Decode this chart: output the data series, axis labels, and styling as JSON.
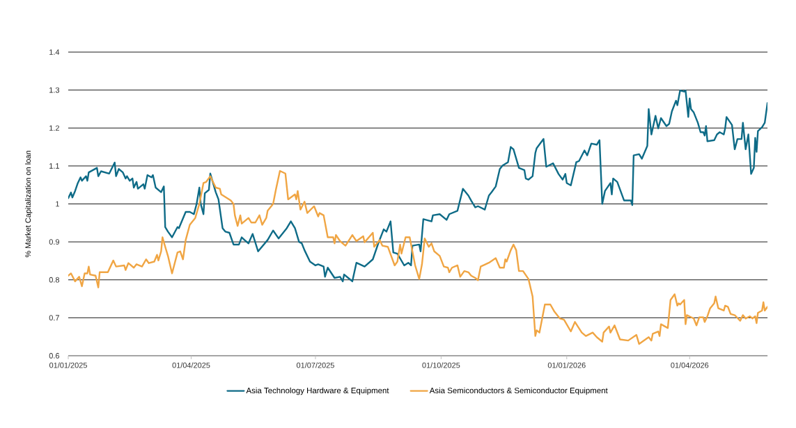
{
  "chart_data": {
    "type": "line",
    "ylabel": "% Market Capitalization on loan",
    "xlim": [
      "2025-01-01",
      "2026-05-28"
    ],
    "xticks": [
      {
        "value": "2025-01-01",
        "label": "01/01/2025"
      },
      {
        "value": "2025-04-01",
        "label": "01/04/2025"
      },
      {
        "value": "2025-07-01",
        "label": "01/07/2025"
      },
      {
        "value": "2025-10-01",
        "label": "01/10/2025"
      },
      {
        "value": "2026-01-01",
        "label": "01/01/2026"
      },
      {
        "value": "2026-04-01",
        "label": "01/04/2026"
      }
    ],
    "ylim": [
      0.6,
      1.4
    ],
    "yticks": [
      0.6,
      0.7,
      0.8,
      0.9,
      1,
      1.1,
      1.2,
      1.3,
      1.4
    ],
    "grid": "y",
    "legend": "bottom",
    "series": [
      {
        "name": "Asia Technology Hardware & Equipment",
        "color": "#0e6b87",
        "x": [
          "2025-01-01",
          "2025-01-03",
          "2025-01-04",
          "2025-01-06",
          "2025-01-08",
          "2025-01-10",
          "2025-01-11",
          "2025-01-14",
          "2025-01-15",
          "2025-01-16",
          "2025-01-22",
          "2025-01-23",
          "2025-01-25",
          "2025-01-31",
          "2025-02-04",
          "2025-02-05",
          "2025-02-07",
          "2025-02-10",
          "2025-02-12",
          "2025-02-13",
          "2025-02-15",
          "2025-02-17",
          "2025-02-18",
          "2025-02-20",
          "2025-02-21",
          "2025-02-25",
          "2025-02-26",
          "2025-02-28",
          "2025-03-03",
          "2025-03-04",
          "2025-03-06",
          "2025-03-10",
          "2025-03-12",
          "2025-03-13",
          "2025-03-15",
          "2025-03-18",
          "2025-03-22",
          "2025-03-23",
          "2025-03-28",
          "2025-03-31",
          "2025-04-03",
          "2025-04-05",
          "2025-04-07",
          "2025-04-08",
          "2025-04-10",
          "2025-04-11",
          "2025-04-14",
          "2025-04-15",
          "2025-04-19",
          "2025-04-21",
          "2025-04-24",
          "2025-04-26",
          "2025-04-29",
          "2025-05-02",
          "2025-05-06",
          "2025-05-08",
          "2025-05-11",
          "2025-05-13",
          "2025-05-16",
          "2025-05-20",
          "2025-05-27",
          "2025-05-31",
          "2025-06-04",
          "2025-06-10",
          "2025-06-13",
          "2025-06-16",
          "2025-06-19",
          "2025-06-21",
          "2025-06-23",
          "2025-06-27",
          "2025-07-01",
          "2025-07-03",
          "2025-07-07",
          "2025-07-08",
          "2025-07-10",
          "2025-07-15",
          "2025-07-19",
          "2025-07-21",
          "2025-07-22",
          "2025-07-25",
          "2025-07-28",
          "2025-07-31",
          "2025-08-06",
          "2025-08-12",
          "2025-08-16",
          "2025-08-20",
          "2025-08-22",
          "2025-08-25",
          "2025-08-27",
          "2025-08-30",
          "2025-09-04",
          "2025-09-07",
          "2025-09-09",
          "2025-09-10",
          "2025-09-15",
          "2025-09-16",
          "2025-09-18",
          "2025-09-24",
          "2025-09-25",
          "2025-09-30",
          "2025-10-05",
          "2025-10-07",
          "2025-10-13",
          "2025-10-17",
          "2025-10-21",
          "2025-10-23",
          "2025-10-26",
          "2025-10-28",
          "2025-11-02",
          "2025-11-05",
          "2025-11-07",
          "2025-11-10",
          "2025-11-13",
          "2025-11-15",
          "2025-11-19",
          "2025-11-21",
          "2025-11-23",
          "2025-11-27",
          "2025-12-01",
          "2025-12-02",
          "2025-12-04",
          "2025-12-07",
          "2025-12-09",
          "2025-12-10",
          "2025-12-15",
          "2025-12-17",
          "2025-12-22",
          "2025-12-26",
          "2025-12-29",
          "2025-12-31",
          "2026-01-01",
          "2026-01-04",
          "2026-01-08",
          "2026-01-10",
          "2026-01-14",
          "2026-01-16",
          "2026-01-19",
          "2026-01-23",
          "2026-01-25",
          "2026-01-27",
          "2026-01-29",
          "2026-02-02",
          "2026-02-03",
          "2026-02-04",
          "2026-02-07",
          "2026-02-12",
          "2026-02-17",
          "2026-02-18",
          "2026-02-19",
          "2026-02-23",
          "2026-02-25",
          "2026-03-01",
          "2026-03-02",
          "2026-03-04",
          "2026-03-07",
          "2026-03-09",
          "2026-03-11",
          "2026-03-15",
          "2026-03-17",
          "2026-03-19",
          "2026-03-22",
          "2026-03-23",
          "2026-03-25",
          "2026-03-28",
          "2026-03-29",
          "2026-03-31",
          "2026-04-01",
          "2026-04-02",
          "2026-04-04",
          "2026-04-07",
          "2026-04-09",
          "2026-04-11",
          "2026-04-12",
          "2026-04-13",
          "2026-04-14",
          "2026-04-19",
          "2026-04-21",
          "2026-04-23",
          "2026-04-26",
          "2026-04-27",
          "2026-04-28",
          "2026-05-02",
          "2026-05-04",
          "2026-05-06",
          "2026-05-09",
          "2026-05-10",
          "2026-05-12",
          "2026-05-14",
          "2026-05-16",
          "2026-05-18",
          "2026-05-19",
          "2026-05-20",
          "2026-05-21",
          "2026-05-24",
          "2026-05-26",
          "2026-05-28"
        ],
        "values": [
          1.015,
          1.03,
          1.017,
          1.034,
          1.055,
          1.07,
          1.061,
          1.073,
          1.061,
          1.083,
          1.095,
          1.073,
          1.086,
          1.08,
          1.109,
          1.073,
          1.092,
          1.083,
          1.067,
          1.073,
          1.061,
          1.067,
          1.043,
          1.058,
          1.04,
          1.052,
          1.04,
          1.076,
          1.07,
          1.076,
          1.043,
          1.031,
          1.046,
          0.939,
          0.927,
          0.912,
          0.939,
          0.936,
          0.979,
          0.979,
          0.973,
          1.0,
          1.043,
          1.0,
          0.973,
          1.028,
          1.037,
          1.08,
          1.031,
          1.012,
          0.936,
          0.927,
          0.924,
          0.893,
          0.893,
          0.912,
          0.902,
          0.896,
          0.921,
          0.875,
          0.905,
          0.93,
          0.909,
          0.936,
          0.954,
          0.936,
          0.9,
          0.896,
          0.878,
          0.848,
          0.838,
          0.841,
          0.835,
          0.808,
          0.832,
          0.805,
          0.808,
          0.796,
          0.814,
          0.805,
          0.796,
          0.845,
          0.835,
          0.854,
          0.896,
          0.933,
          0.927,
          0.954,
          0.872,
          0.869,
          0.838,
          0.845,
          0.838,
          0.89,
          0.893,
          0.875,
          0.96,
          0.954,
          0.97,
          0.973,
          0.958,
          0.973,
          0.982,
          1.04,
          1.022,
          1.009,
          0.991,
          0.994,
          0.985,
          1.022,
          1.031,
          1.046,
          1.092,
          1.101,
          1.11,
          1.15,
          1.144,
          1.095,
          1.089,
          1.067,
          1.064,
          1.073,
          1.134,
          1.147,
          1.171,
          1.098,
          1.107,
          1.079,
          1.064,
          1.079,
          1.055,
          1.049,
          1.11,
          1.113,
          1.141,
          1.128,
          1.159,
          1.156,
          1.168,
          1.0,
          1.034,
          1.055,
          1.025,
          1.067,
          1.058,
          1.009,
          1.009,
          0.997,
          1.128,
          1.131,
          1.119,
          1.153,
          1.25,
          1.183,
          1.232,
          1.199,
          1.226,
          1.205,
          1.211,
          1.244,
          1.272,
          1.26,
          1.299,
          1.296,
          1.299,
          1.229,
          1.278,
          1.25,
          1.241,
          1.214,
          1.189,
          1.189,
          1.18,
          1.205,
          1.165,
          1.168,
          1.183,
          1.189,
          1.183,
          1.199,
          1.229,
          1.208,
          1.144,
          1.171,
          1.171,
          1.214,
          1.144,
          1.183,
          1.079,
          1.095,
          1.174,
          1.137,
          1.192,
          1.202,
          1.214,
          1.266
        ]
      },
      {
        "name": "Asia Semiconductors & Semiconductor Equipment",
        "color": "#f0a543",
        "x": [
          "2025-01-01",
          "2025-01-03",
          "2025-01-06",
          "2025-01-09",
          "2025-01-11",
          "2025-01-13",
          "2025-01-15",
          "2025-01-16",
          "2025-01-17",
          "2025-01-21",
          "2025-01-23",
          "2025-01-24",
          "2025-01-30",
          "2025-02-03",
          "2025-02-05",
          "2025-02-11",
          "2025-02-12",
          "2025-02-14",
          "2025-02-18",
          "2025-02-20",
          "2025-02-24",
          "2025-02-27",
          "2025-03-01",
          "2025-03-05",
          "2025-03-07",
          "2025-03-08",
          "2025-03-10",
          "2025-03-11",
          "2025-03-13",
          "2025-03-15",
          "2025-03-18",
          "2025-03-22",
          "2025-03-24",
          "2025-03-26",
          "2025-03-28",
          "2025-03-31",
          "2025-04-04",
          "2025-04-07",
          "2025-04-10",
          "2025-04-12",
          "2025-04-15",
          "2025-04-19",
          "2025-04-22",
          "2025-04-23",
          "2025-04-30",
          "2025-05-02",
          "2025-05-03",
          "2025-05-05",
          "2025-05-07",
          "2025-05-08",
          "2025-05-13",
          "2025-05-15",
          "2025-05-18",
          "2025-05-21",
          "2025-05-23",
          "2025-05-26",
          "2025-05-27",
          "2025-05-31",
          "2025-06-02",
          "2025-06-05",
          "2025-06-09",
          "2025-06-11",
          "2025-06-16",
          "2025-06-17",
          "2025-06-18",
          "2025-06-20",
          "2025-06-23",
          "2025-06-25",
          "2025-06-30",
          "2025-07-03",
          "2025-07-04",
          "2025-07-07",
          "2025-07-10",
          "2025-07-14",
          "2025-07-15",
          "2025-07-16",
          "2025-07-19",
          "2025-07-23",
          "2025-07-28",
          "2025-07-31",
          "2025-08-05",
          "2025-08-06",
          "2025-08-12",
          "2025-08-13",
          "2025-08-17",
          "2025-08-19",
          "2025-08-23",
          "2025-08-28",
          "2025-08-30",
          "2025-09-01",
          "2025-09-02",
          "2025-09-05",
          "2025-09-08",
          "2025-09-10",
          "2025-09-12",
          "2025-09-15",
          "2025-09-17",
          "2025-09-19",
          "2025-09-22",
          "2025-09-24",
          "2025-09-26",
          "2025-09-30",
          "2025-10-03",
          "2025-10-06",
          "2025-10-07",
          "2025-10-09",
          "2025-10-13",
          "2025-10-15",
          "2025-10-18",
          "2025-10-21",
          "2025-10-23",
          "2025-10-26",
          "2025-10-28",
          "2025-10-30",
          "2025-11-05",
          "2025-11-10",
          "2025-11-13",
          "2025-11-16",
          "2025-11-17",
          "2025-11-18",
          "2025-11-21",
          "2025-11-23",
          "2025-11-25",
          "2025-11-27",
          "2025-11-30",
          "2025-12-04",
          "2025-12-07",
          "2025-12-09",
          "2025-12-10",
          "2025-12-12",
          "2025-12-16",
          "2025-12-20",
          "2025-12-23",
          "2025-12-27",
          "2025-12-30",
          "2026-01-04",
          "2026-01-07",
          "2026-01-12",
          "2026-01-15",
          "2026-01-20",
          "2026-01-23",
          "2026-01-27",
          "2026-01-28",
          "2026-02-01",
          "2026-02-02",
          "2026-02-05",
          "2026-02-09",
          "2026-02-15",
          "2026-02-21",
          "2026-02-23",
          "2026-03-02",
          "2026-03-04",
          "2026-03-05",
          "2026-03-09",
          "2026-03-10",
          "2026-03-11",
          "2026-03-16",
          "2026-03-18",
          "2026-03-21",
          "2026-03-23",
          "2026-03-24",
          "2026-03-25",
          "2026-03-28",
          "2026-03-29",
          "2026-03-30",
          "2026-04-04",
          "2026-04-06",
          "2026-04-08",
          "2026-04-11",
          "2026-04-12",
          "2026-04-14",
          "2026-04-16",
          "2026-04-19",
          "2026-04-20",
          "2026-04-22",
          "2026-04-26",
          "2026-04-27",
          "2026-04-29",
          "2026-05-01",
          "2026-05-04",
          "2026-05-08",
          "2026-05-10",
          "2026-05-12",
          "2026-05-15",
          "2026-05-17",
          "2026-05-19",
          "2026-05-20",
          "2026-05-21",
          "2026-05-24",
          "2026-05-25",
          "2026-05-26",
          "2026-05-28"
        ],
        "values": [
          0.811,
          0.817,
          0.796,
          0.808,
          0.783,
          0.817,
          0.817,
          0.835,
          0.814,
          0.811,
          0.78,
          0.82,
          0.82,
          0.851,
          0.835,
          0.838,
          0.826,
          0.844,
          0.832,
          0.841,
          0.835,
          0.854,
          0.844,
          0.848,
          0.866,
          0.851,
          0.875,
          0.912,
          0.887,
          0.863,
          0.817,
          0.872,
          0.875,
          0.854,
          0.905,
          0.945,
          0.963,
          1.0,
          1.055,
          1.058,
          1.073,
          1.043,
          1.04,
          1.025,
          1.009,
          1.0,
          0.97,
          0.942,
          0.97,
          0.948,
          0.963,
          0.951,
          0.951,
          0.97,
          0.945,
          0.963,
          0.982,
          1.0,
          1.037,
          1.087,
          1.08,
          1.012,
          1.025,
          1.012,
          1.034,
          0.985,
          1.006,
          0.976,
          0.994,
          0.967,
          0.976,
          0.97,
          0.912,
          0.912,
          0.896,
          0.918,
          0.902,
          0.89,
          0.918,
          0.902,
          0.915,
          0.899,
          0.924,
          0.887,
          0.905,
          0.89,
          0.887,
          0.838,
          0.848,
          0.893,
          0.869,
          0.912,
          0.912,
          0.875,
          0.838,
          0.802,
          0.841,
          0.909,
          0.887,
          0.896,
          0.875,
          0.863,
          0.835,
          0.832,
          0.82,
          0.832,
          0.838,
          0.808,
          0.823,
          0.82,
          0.811,
          0.805,
          0.799,
          0.835,
          0.845,
          0.857,
          0.832,
          0.832,
          0.854,
          0.848,
          0.878,
          0.893,
          0.878,
          0.823,
          0.823,
          0.802,
          0.756,
          0.652,
          0.667,
          0.661,
          0.735,
          0.735,
          0.716,
          0.698,
          0.695,
          0.664,
          0.689,
          0.661,
          0.652,
          0.661,
          0.649,
          0.637,
          0.661,
          0.677,
          0.661,
          0.68,
          0.643,
          0.64,
          0.655,
          0.631,
          0.649,
          0.64,
          0.658,
          0.664,
          0.652,
          0.683,
          0.673,
          0.747,
          0.762,
          0.732,
          0.738,
          0.735,
          0.747,
          0.683,
          0.707,
          0.698,
          0.68,
          0.701,
          0.701,
          0.689,
          0.704,
          0.725,
          0.738,
          0.756,
          0.725,
          0.719,
          0.732,
          0.729,
          0.71,
          0.707,
          0.692,
          0.707,
          0.698,
          0.704,
          0.698,
          0.704,
          0.686,
          0.713,
          0.719,
          0.741,
          0.719,
          0.729
        ]
      }
    ]
  }
}
